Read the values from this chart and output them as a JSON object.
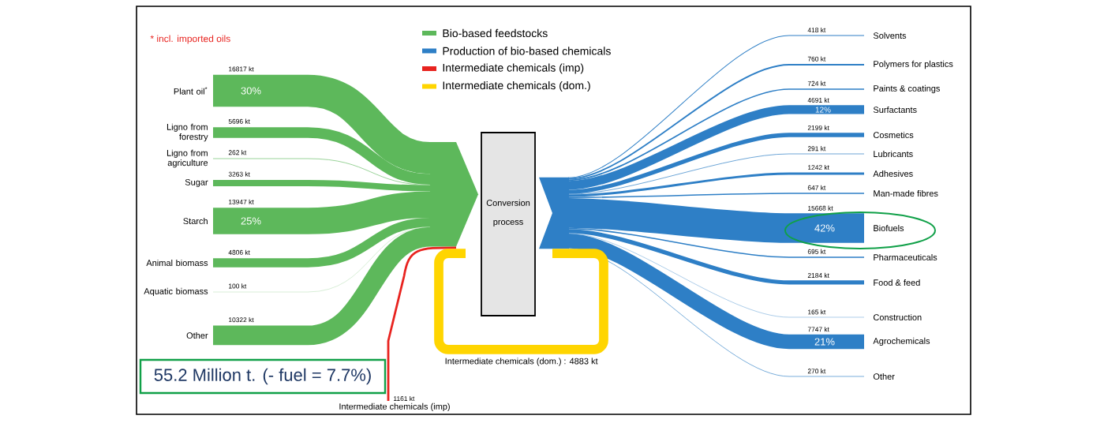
{
  "chart_data": {
    "type": "other",
    "legend": "top",
    "categories": [
      "Plant oil$^{*}$",
      "Ligno from forestry",
      "Ligno from agriculture",
      "Sugar",
      "Starch",
      "Animal biomass",
      "Aquatic biomass",
      "Other",
      "Solvents",
      "Polymers for plastics",
      "Paints & coatings",
      "Surfactants",
      "Cosmetics",
      "Lubricants",
      "Adhesives",
      "Man-made fibres",
      "Biofuels",
      "Pharmaceuticals",
      "Food & feed",
      "Construction",
      "Agrochemicals",
      "Other",
      "Intermediate chemicals (imp)",
      "Intermediate chemicals (dom.)"
    ],
    "series": [
      {
        "name": "Bio-based feedstocks",
        "color": "#5db85b",
        "values": [
          16817,
          5696,
          262,
          3263,
          13947,
          4806,
          100,
          10322,
          null,
          null,
          null,
          null,
          null,
          null,
          null,
          null,
          null,
          null,
          null,
          null,
          null,
          null,
          null,
          null
        ],
        "value_labels": [
          "16817 kt",
          "5696 kt",
          "262 kt",
          "3263 kt",
          "13947 kt",
          "4806 kt",
          "100 kt",
          "10322 kt",
          null,
          null,
          null,
          null,
          null,
          null,
          null,
          null,
          null,
          null,
          null,
          null,
          null,
          null,
          null,
          null
        ]
      },
      {
        "name": "Production of bio-based chemicals",
        "color": "#2e7fc6",
        "values": [
          null,
          null,
          null,
          null,
          null,
          null,
          null,
          null,
          418,
          760,
          724,
          4691,
          2199,
          291,
          1242,
          647,
          15668,
          695,
          2184,
          165,
          7747,
          270,
          null,
          null
        ],
        "value_labels": [
          null,
          null,
          null,
          null,
          null,
          null,
          null,
          null,
          "418 kt",
          "760 kt",
          "724 kt",
          "4691 kt",
          "2199 kt",
          "291 kt",
          "1242 kt",
          "647 kt",
          "15668 kt",
          "695 kt",
          "2184 kt",
          "165 kt",
          "7747 kt",
          "270 kt",
          null,
          null
        ]
      },
      {
        "name": "Intermediate chemicals (imp)",
        "color": "#e8231f",
        "values": [
          null,
          null,
          null,
          null,
          null,
          null,
          null,
          null,
          null,
          null,
          null,
          null,
          null,
          null,
          null,
          null,
          null,
          null,
          null,
          null,
          null,
          null,
          1161,
          null
        ],
        "value_labels": [
          null,
          null,
          null,
          null,
          null,
          null,
          null,
          null,
          null,
          null,
          null,
          null,
          null,
          null,
          null,
          null,
          null,
          null,
          null,
          null,
          null,
          null,
          "1161 kt",
          null
        ]
      },
      {
        "name": "Intermediate chemicals (dom.)",
        "color": "#ffd500",
        "values": [
          null,
          null,
          null,
          null,
          null,
          null,
          null,
          null,
          null,
          null,
          null,
          null,
          null,
          null,
          null,
          null,
          null,
          null,
          null,
          null,
          null,
          null,
          null,
          4883
        ],
        "value_labels": [
          null,
          null,
          null,
          null,
          null,
          null,
          null,
          null,
          null,
          null,
          null,
          null,
          null,
          null,
          null,
          null,
          null,
          null,
          null,
          null,
          null,
          null,
          null,
          ": 4883 kt"
        ]
      }
    ],
    "annotations": [
      "* incl. imported oils",
      "Conversion process",
      "55.2 Million t. (- fuel = 7.7%)",
      "30%",
      "25%",
      "12%",
      "42%",
      "21%"
    ]
  }
}
